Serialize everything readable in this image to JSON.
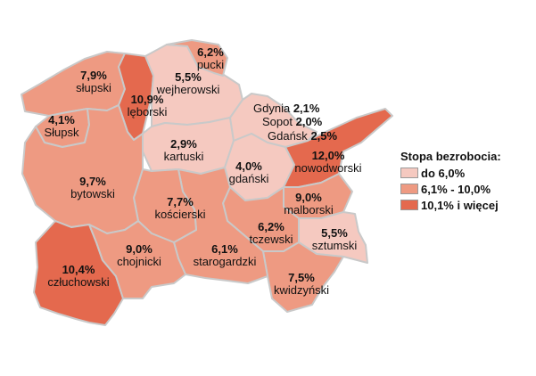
{
  "colors": {
    "low": "#f5c9c0",
    "mid": "#ee9a82",
    "high": "#e4694e",
    "border": "#c9c9c9"
  },
  "districts": [
    {
      "id": "pucki",
      "name": "pucki",
      "value": "6,2%",
      "cls": "mid"
    },
    {
      "id": "slupski",
      "name": "słupski",
      "value": "7,9%",
      "cls": "mid"
    },
    {
      "id": "wejherowski",
      "name": "wejherowski",
      "value": "5,5%",
      "cls": "low"
    },
    {
      "id": "leborski",
      "name": "lęborski",
      "value": "10,9%",
      "cls": "high"
    },
    {
      "id": "kartuski",
      "name": "kartuski",
      "value": "2,9%",
      "cls": "low"
    },
    {
      "id": "gdanski",
      "name": "gdański",
      "value": "4,0%",
      "cls": "low"
    },
    {
      "id": "nowodworski",
      "name": "nowodworski",
      "value": "12,0%",
      "cls": "high"
    },
    {
      "id": "bytowski",
      "name": "bytowski",
      "value": "9,7%",
      "cls": "mid"
    },
    {
      "id": "koscierski",
      "name": "kościerski",
      "value": "7,7%",
      "cls": "mid"
    },
    {
      "id": "malborski",
      "name": "malborski",
      "value": "9,0%",
      "cls": "mid"
    },
    {
      "id": "tczewski",
      "name": "tczewski",
      "value": "6,2%",
      "cls": "mid"
    },
    {
      "id": "sztumski",
      "name": "sztumski",
      "value": "5,5%",
      "cls": "low"
    },
    {
      "id": "czluchowski",
      "name": "człuchowski",
      "value": "10,4%",
      "cls": "high"
    },
    {
      "id": "chojnicki",
      "name": "chojnicki",
      "value": "9,0%",
      "cls": "mid"
    },
    {
      "id": "starogardzki",
      "name": "starogardzki",
      "value": "6,1%",
      "cls": "mid"
    },
    {
      "id": "kwidzynski",
      "name": "kwidzyński",
      "value": "7,5%",
      "cls": "mid"
    }
  ],
  "cities": [
    {
      "id": "slupsk",
      "name": "Słupsk",
      "value": "4,1%"
    },
    {
      "id": "gdynia",
      "name": "Gdynia",
      "value": "2,1%"
    },
    {
      "id": "sopot",
      "name": "Sopot",
      "value": "2,0%"
    },
    {
      "id": "gdansk",
      "name": "Gdańsk",
      "value": "2,5%"
    }
  ],
  "legend": {
    "title": "Stopa bezrobocia:",
    "items": [
      {
        "label": "do 6,0%",
        "cls": "low"
      },
      {
        "label": "6,1% - 10,0%",
        "cls": "mid"
      },
      {
        "label": "10,1% i więcej",
        "cls": "high"
      }
    ]
  }
}
